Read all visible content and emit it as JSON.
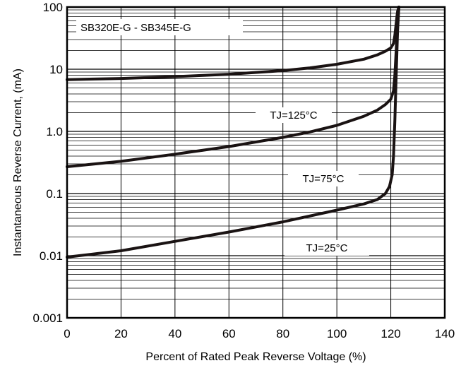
{
  "chart_data": {
    "type": "line",
    "title": "SB320E-G - SB345E-G",
    "xlabel": "Percent of Rated Peak Reverse Voltage (%)",
    "ylabel": "Instantaneous Reverse Current, (mA)",
    "xlim": [
      0,
      140
    ],
    "ylim": [
      0.001,
      100
    ],
    "yscale": "log",
    "grid": true,
    "x_ticks": [
      "0",
      "20",
      "40",
      "60",
      "80",
      "100",
      "120",
      "140"
    ],
    "y_ticks": [
      "0.001",
      "0.01",
      "0.1",
      "1.0",
      "10",
      "100"
    ],
    "series": [
      {
        "name": "TJ=125°C",
        "x": [
          0,
          20,
          40,
          60,
          80,
          90,
          100,
          110,
          115,
          118,
          120,
          121,
          121.5,
          122,
          122.5,
          123
        ],
        "y": [
          6.8,
          7.1,
          7.6,
          8.3,
          9.5,
          10.5,
          12,
          14.5,
          17,
          19.5,
          22,
          26,
          35,
          55,
          85,
          100
        ]
      },
      {
        "name": "TJ=75°C",
        "x": [
          0,
          20,
          40,
          60,
          80,
          90,
          100,
          110,
          115,
          118,
          120,
          121,
          121.5,
          122,
          122.5,
          123
        ],
        "y": [
          0.27,
          0.33,
          0.43,
          0.57,
          0.8,
          0.98,
          1.25,
          1.75,
          2.2,
          2.7,
          3.3,
          4.5,
          8,
          20,
          60,
          100
        ]
      },
      {
        "name": "TJ=25°C",
        "x": [
          0,
          20,
          40,
          60,
          80,
          100,
          110,
          115,
          118,
          119.5,
          120.5,
          121,
          121.5,
          122,
          122.5,
          123
        ],
        "y": [
          0.0095,
          0.012,
          0.017,
          0.024,
          0.035,
          0.054,
          0.068,
          0.08,
          0.1,
          0.13,
          0.2,
          0.4,
          1.5,
          8,
          40,
          100
        ]
      }
    ],
    "annotations": [
      "TJ=125°C",
      "TJ=75°C",
      "TJ=25°C"
    ]
  }
}
